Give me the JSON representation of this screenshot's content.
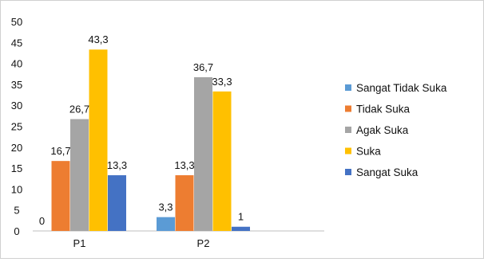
{
  "chart_data": {
    "type": "bar",
    "categories": [
      "P1",
      "P2"
    ],
    "series": [
      {
        "name": "Sangat Tidak Suka",
        "values": [
          0,
          3.3
        ],
        "labels": [
          "0",
          "3,3"
        ],
        "color": "#5B9BD5"
      },
      {
        "name": "Tidak Suka",
        "values": [
          16.7,
          13.3
        ],
        "labels": [
          "16,7",
          "13,3"
        ],
        "color": "#ED7D31"
      },
      {
        "name": "Agak Suka",
        "values": [
          26.7,
          36.7
        ],
        "labels": [
          "26,7",
          "36,7"
        ],
        "color": "#A5A5A5"
      },
      {
        "name": "Suka",
        "values": [
          43.3,
          33.3
        ],
        "labels": [
          "43,3",
          "33,3"
        ],
        "color": "#FFC000"
      },
      {
        "name": "Sangat Suka",
        "values": [
          13.3,
          1
        ],
        "labels": [
          "13,3",
          "1"
        ],
        "color": "#4472C4"
      }
    ],
    "yticks": [
      "0",
      "5",
      "10",
      "15",
      "20",
      "25",
      "30",
      "35",
      "40",
      "45",
      "50"
    ],
    "ylim": [
      0,
      50
    ],
    "legend": "right",
    "grid": false,
    "axis_color": "#bfbfbf"
  }
}
